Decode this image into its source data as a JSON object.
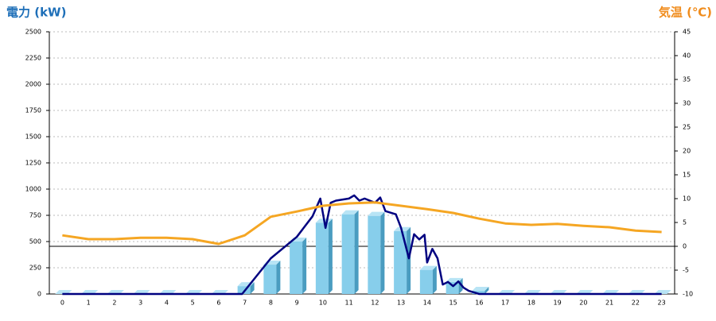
{
  "chart_data": {
    "type": "bar",
    "y_label": "電力 (kW)",
    "y2_label": "気温 (℃)",
    "categories": [
      "0",
      "1",
      "2",
      "3",
      "4",
      "5",
      "6",
      "7",
      "8",
      "9",
      "10",
      "11",
      "12",
      "13",
      "14",
      "15",
      "16",
      "17",
      "18",
      "19",
      "20",
      "21",
      "22",
      "23"
    ],
    "series": [
      {
        "type": "bar",
        "color": "#87ceeb",
        "values": [
          0,
          0,
          0,
          0,
          0,
          0,
          0,
          75,
          280,
          500,
          680,
          760,
          745,
          600,
          230,
          115,
          30,
          0,
          0,
          0,
          0,
          0,
          0,
          0
        ]
      },
      {
        "type": "line",
        "color": "#000080",
        "x": [
          0,
          6.9,
          8,
          9,
          9.6,
          9.9,
          10.1,
          10.3,
          10.5,
          11,
          11.2,
          11.4,
          11.6,
          12,
          12.2,
          12.4,
          12.8,
          13,
          13.3,
          13.5,
          13.7,
          13.9,
          14,
          14.2,
          14.4,
          14.6,
          14.8,
          15,
          15.2,
          15.4,
          15.6,
          16,
          23
        ],
        "values": [
          0,
          0,
          340,
          545,
          740,
          910,
          630,
          870,
          890,
          910,
          940,
          890,
          910,
          870,
          920,
          790,
          760,
          630,
          340,
          570,
          520,
          565,
          300,
          430,
          340,
          90,
          115,
          75,
          120,
          60,
          30,
          0,
          0
        ]
      },
      {
        "type": "line",
        "axis": "y2",
        "color": "#f5a623",
        "values": [
          2.3,
          1.5,
          1.5,
          1.8,
          1.8,
          1.5,
          0.5,
          2.3,
          6.2,
          7.3,
          8.5,
          9,
          9.2,
          8.5,
          7.8,
          7,
          5.8,
          4.8,
          4.5,
          4.7,
          4.3,
          4,
          3.3,
          3
        ]
      }
    ],
    "ylim": [
      0,
      2500
    ],
    "yticks": [
      0,
      250,
      500,
      750,
      1000,
      1250,
      1500,
      1750,
      2000,
      2250,
      2500
    ],
    "y2lim": [
      -10,
      45
    ],
    "y2ticks": [
      -10,
      -5,
      0,
      5,
      10,
      15,
      20,
      25,
      30,
      35,
      40,
      45
    ],
    "y2_reference_line": 0,
    "grid": true
  }
}
